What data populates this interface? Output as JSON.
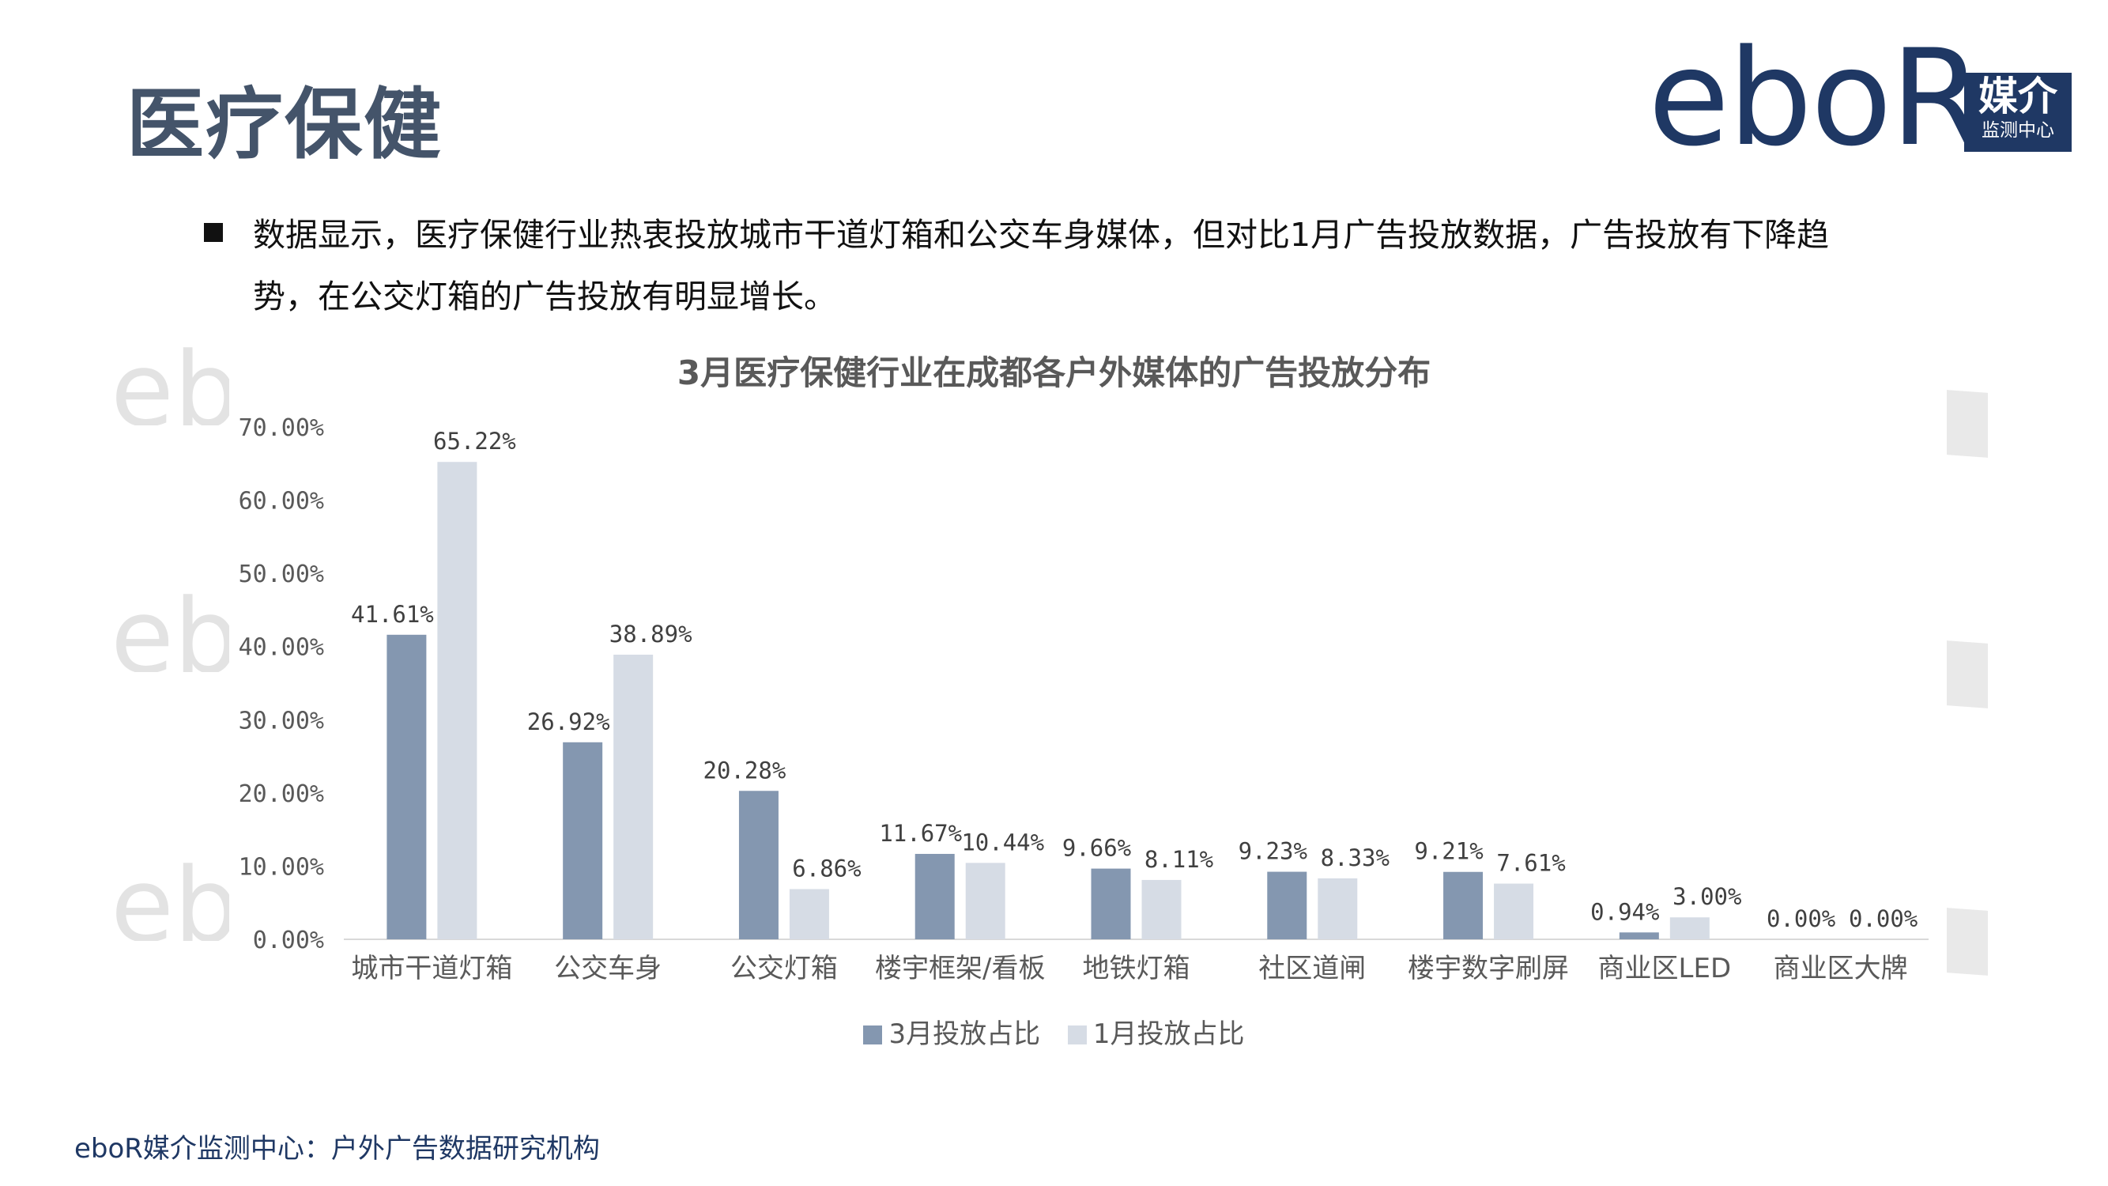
{
  "header": {
    "title": "医疗保健",
    "logo_text": "eboR",
    "logo_badge_main": "媒介",
    "logo_badge_sub": "监测中心"
  },
  "summary": "数据显示，医疗保健行业热衷投放城市干道灯箱和公交车身媒体，但对比1月广告投放数据，广告投放有下降趋势，在公交灯箱的广告投放有明显增长。",
  "watermark_text": "eboR",
  "footer": "eboR媒介监测中心：户外广告数据研究机构",
  "colors": {
    "title": "#44546a",
    "brand": "#1f3864",
    "series_march": "#8497b0",
    "series_january": "#d6dce5",
    "axis_text": "#595959"
  },
  "chart_data": {
    "type": "bar",
    "title": "3月医疗保健行业在成都各户外媒体的广告投放分布",
    "xlabel": "",
    "ylabel": "",
    "categories": [
      "城市干道灯箱",
      "公交车身",
      "公交灯箱",
      "楼宇框架/看板",
      "地铁灯箱",
      "社区道闸",
      "楼宇数字刷屏",
      "商业区LED",
      "商业区大牌"
    ],
    "series": [
      {
        "name": "3月投放占比",
        "values": [
          41.61,
          26.92,
          20.28,
          11.67,
          9.66,
          9.23,
          9.21,
          0.94,
          0.0
        ],
        "labels": [
          "41.61%",
          "26.92%",
          "20.28%",
          "11.67%",
          "9.66%",
          "9.23%",
          "9.21%",
          "0.94%",
          "0.00%"
        ]
      },
      {
        "name": "1月投放占比",
        "values": [
          65.22,
          38.89,
          6.86,
          10.44,
          8.11,
          8.33,
          7.61,
          3.0,
          0.0
        ],
        "labels": [
          "65.22%",
          "38.89%",
          "6.86%",
          "10.44%",
          "8.11%",
          "8.33%",
          "7.61%",
          "3.00%",
          "0.00%"
        ]
      }
    ],
    "yticks": [
      "0.00%",
      "10.00%",
      "20.00%",
      "30.00%",
      "40.00%",
      "50.00%",
      "60.00%",
      "70.00%"
    ],
    "ylim": [
      0,
      70
    ],
    "grid": false,
    "legend_position": "bottom"
  }
}
